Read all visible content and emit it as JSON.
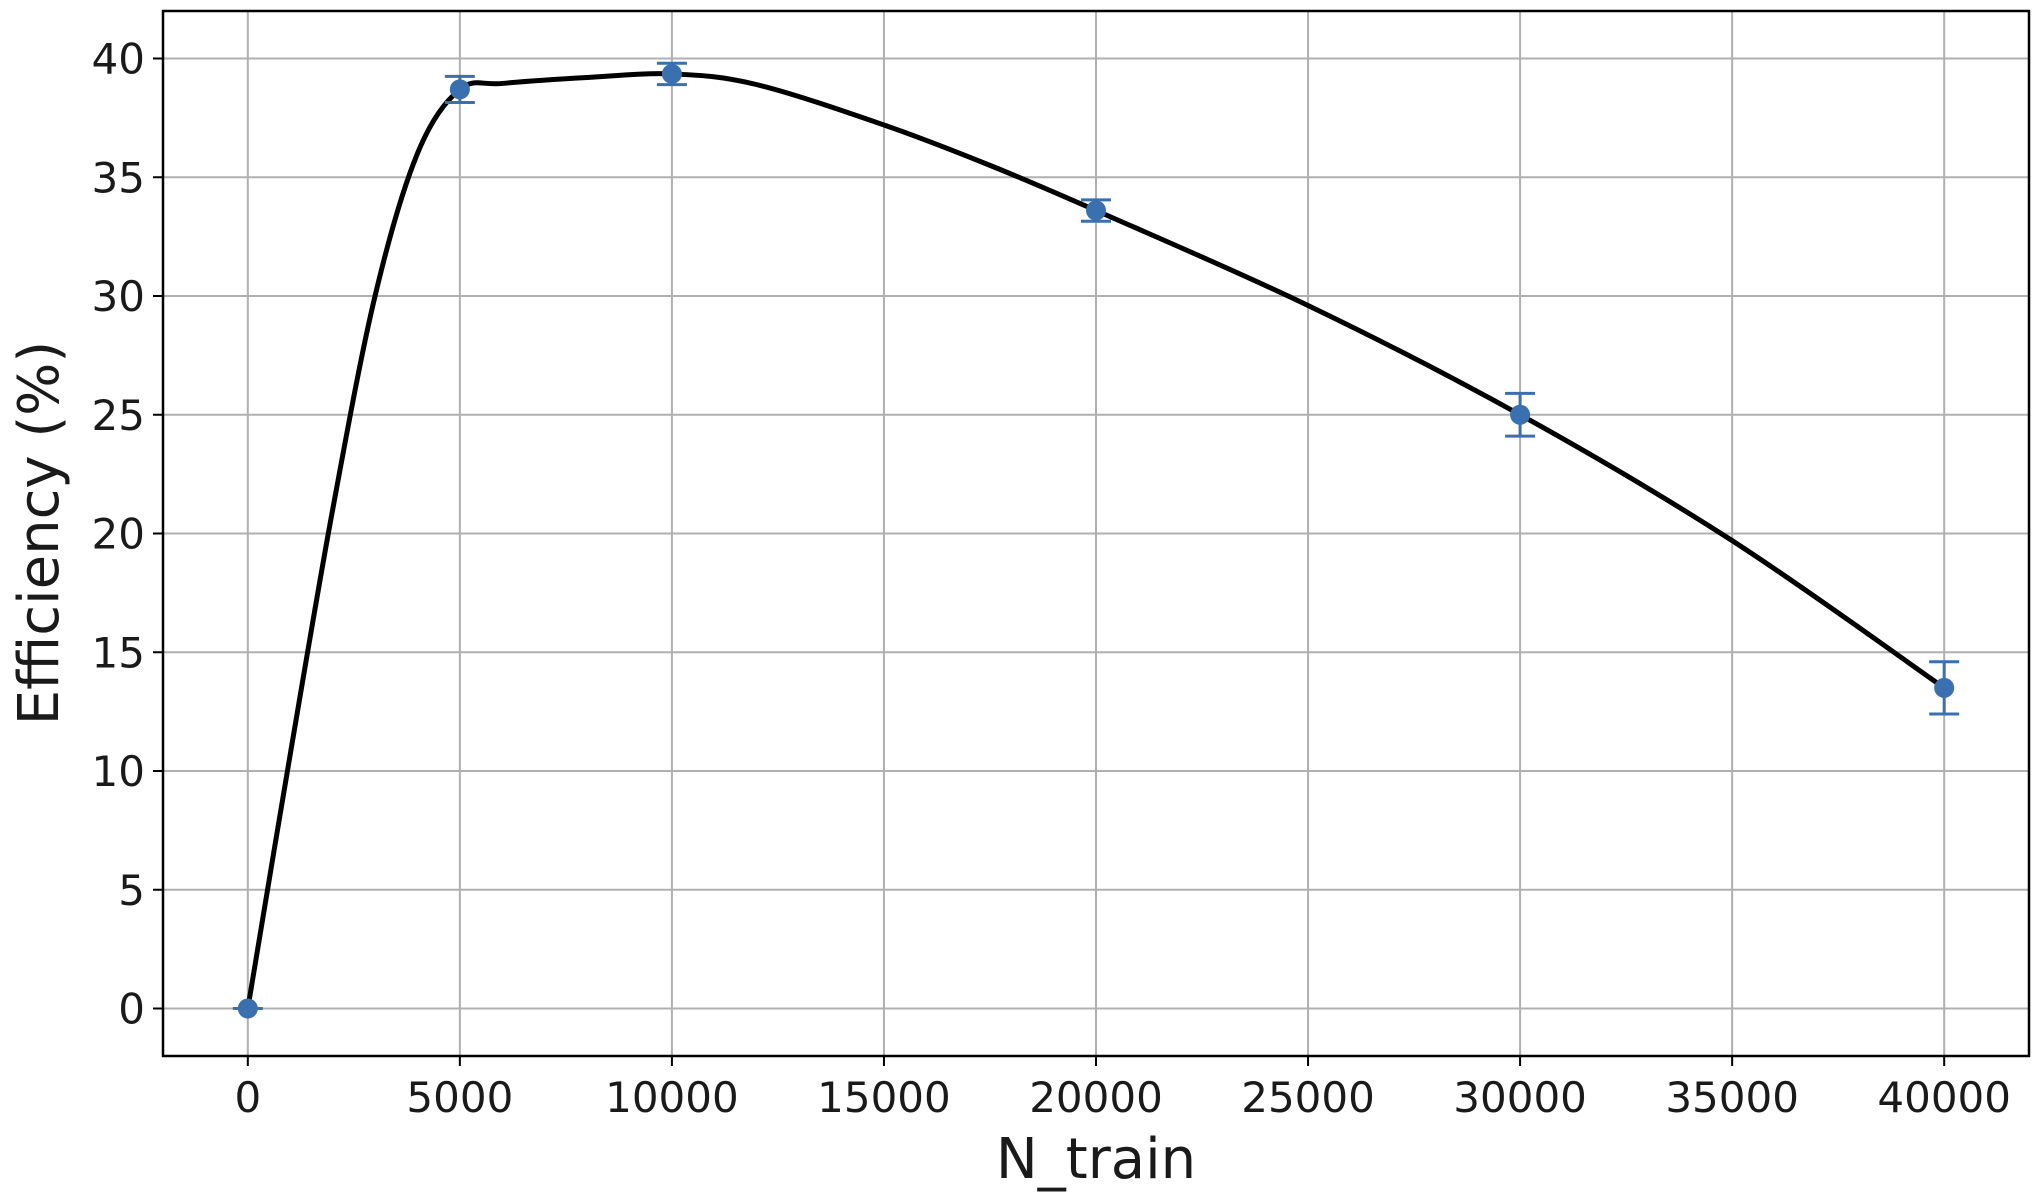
{
  "chart_data": {
    "type": "scatter",
    "title": "",
    "xlabel": "N_train",
    "ylabel": "Efficiency (%)",
    "xlim": [
      -2000,
      42000
    ],
    "ylim": [
      -2,
      42
    ],
    "xticks": [
      0,
      5000,
      10000,
      15000,
      20000,
      25000,
      30000,
      35000,
      40000
    ],
    "xtick_labels": [
      "0",
      "5000",
      "10000",
      "15000",
      "20000",
      "25000",
      "30000",
      "35000",
      "40000"
    ],
    "yticks": [
      0,
      5,
      10,
      15,
      20,
      25,
      30,
      35,
      40
    ],
    "ytick_labels": [
      "0",
      "5",
      "10",
      "15",
      "20",
      "25",
      "30",
      "35",
      "40"
    ],
    "grid": true,
    "series": [
      {
        "kind": "errorbar",
        "color": "#3a6fb0",
        "points": [
          {
            "x": 0,
            "y": 0.0,
            "err": 0.0
          },
          {
            "x": 5000,
            "y": 38.7,
            "err": 0.55
          },
          {
            "x": 10000,
            "y": 39.35,
            "err": 0.45
          },
          {
            "x": 20000,
            "y": 33.6,
            "err": 0.45
          },
          {
            "x": 30000,
            "y": 25.0,
            "err": 0.9
          },
          {
            "x": 40000,
            "y": 13.5,
            "err": 1.1
          }
        ]
      },
      {
        "kind": "line",
        "color": "#000000",
        "x": [
          0,
          1000,
          2000,
          3000,
          4000,
          5000,
          6000,
          8000,
          10000,
          12000,
          15000,
          17500,
          20000,
          25000,
          30000,
          35000,
          40000
        ],
        "y": [
          0,
          10.7,
          21.0,
          30.0,
          36.0,
          38.7,
          38.95,
          39.2,
          39.35,
          38.9,
          37.2,
          35.5,
          33.6,
          29.6,
          25.0,
          19.7,
          13.5
        ]
      }
    ]
  }
}
